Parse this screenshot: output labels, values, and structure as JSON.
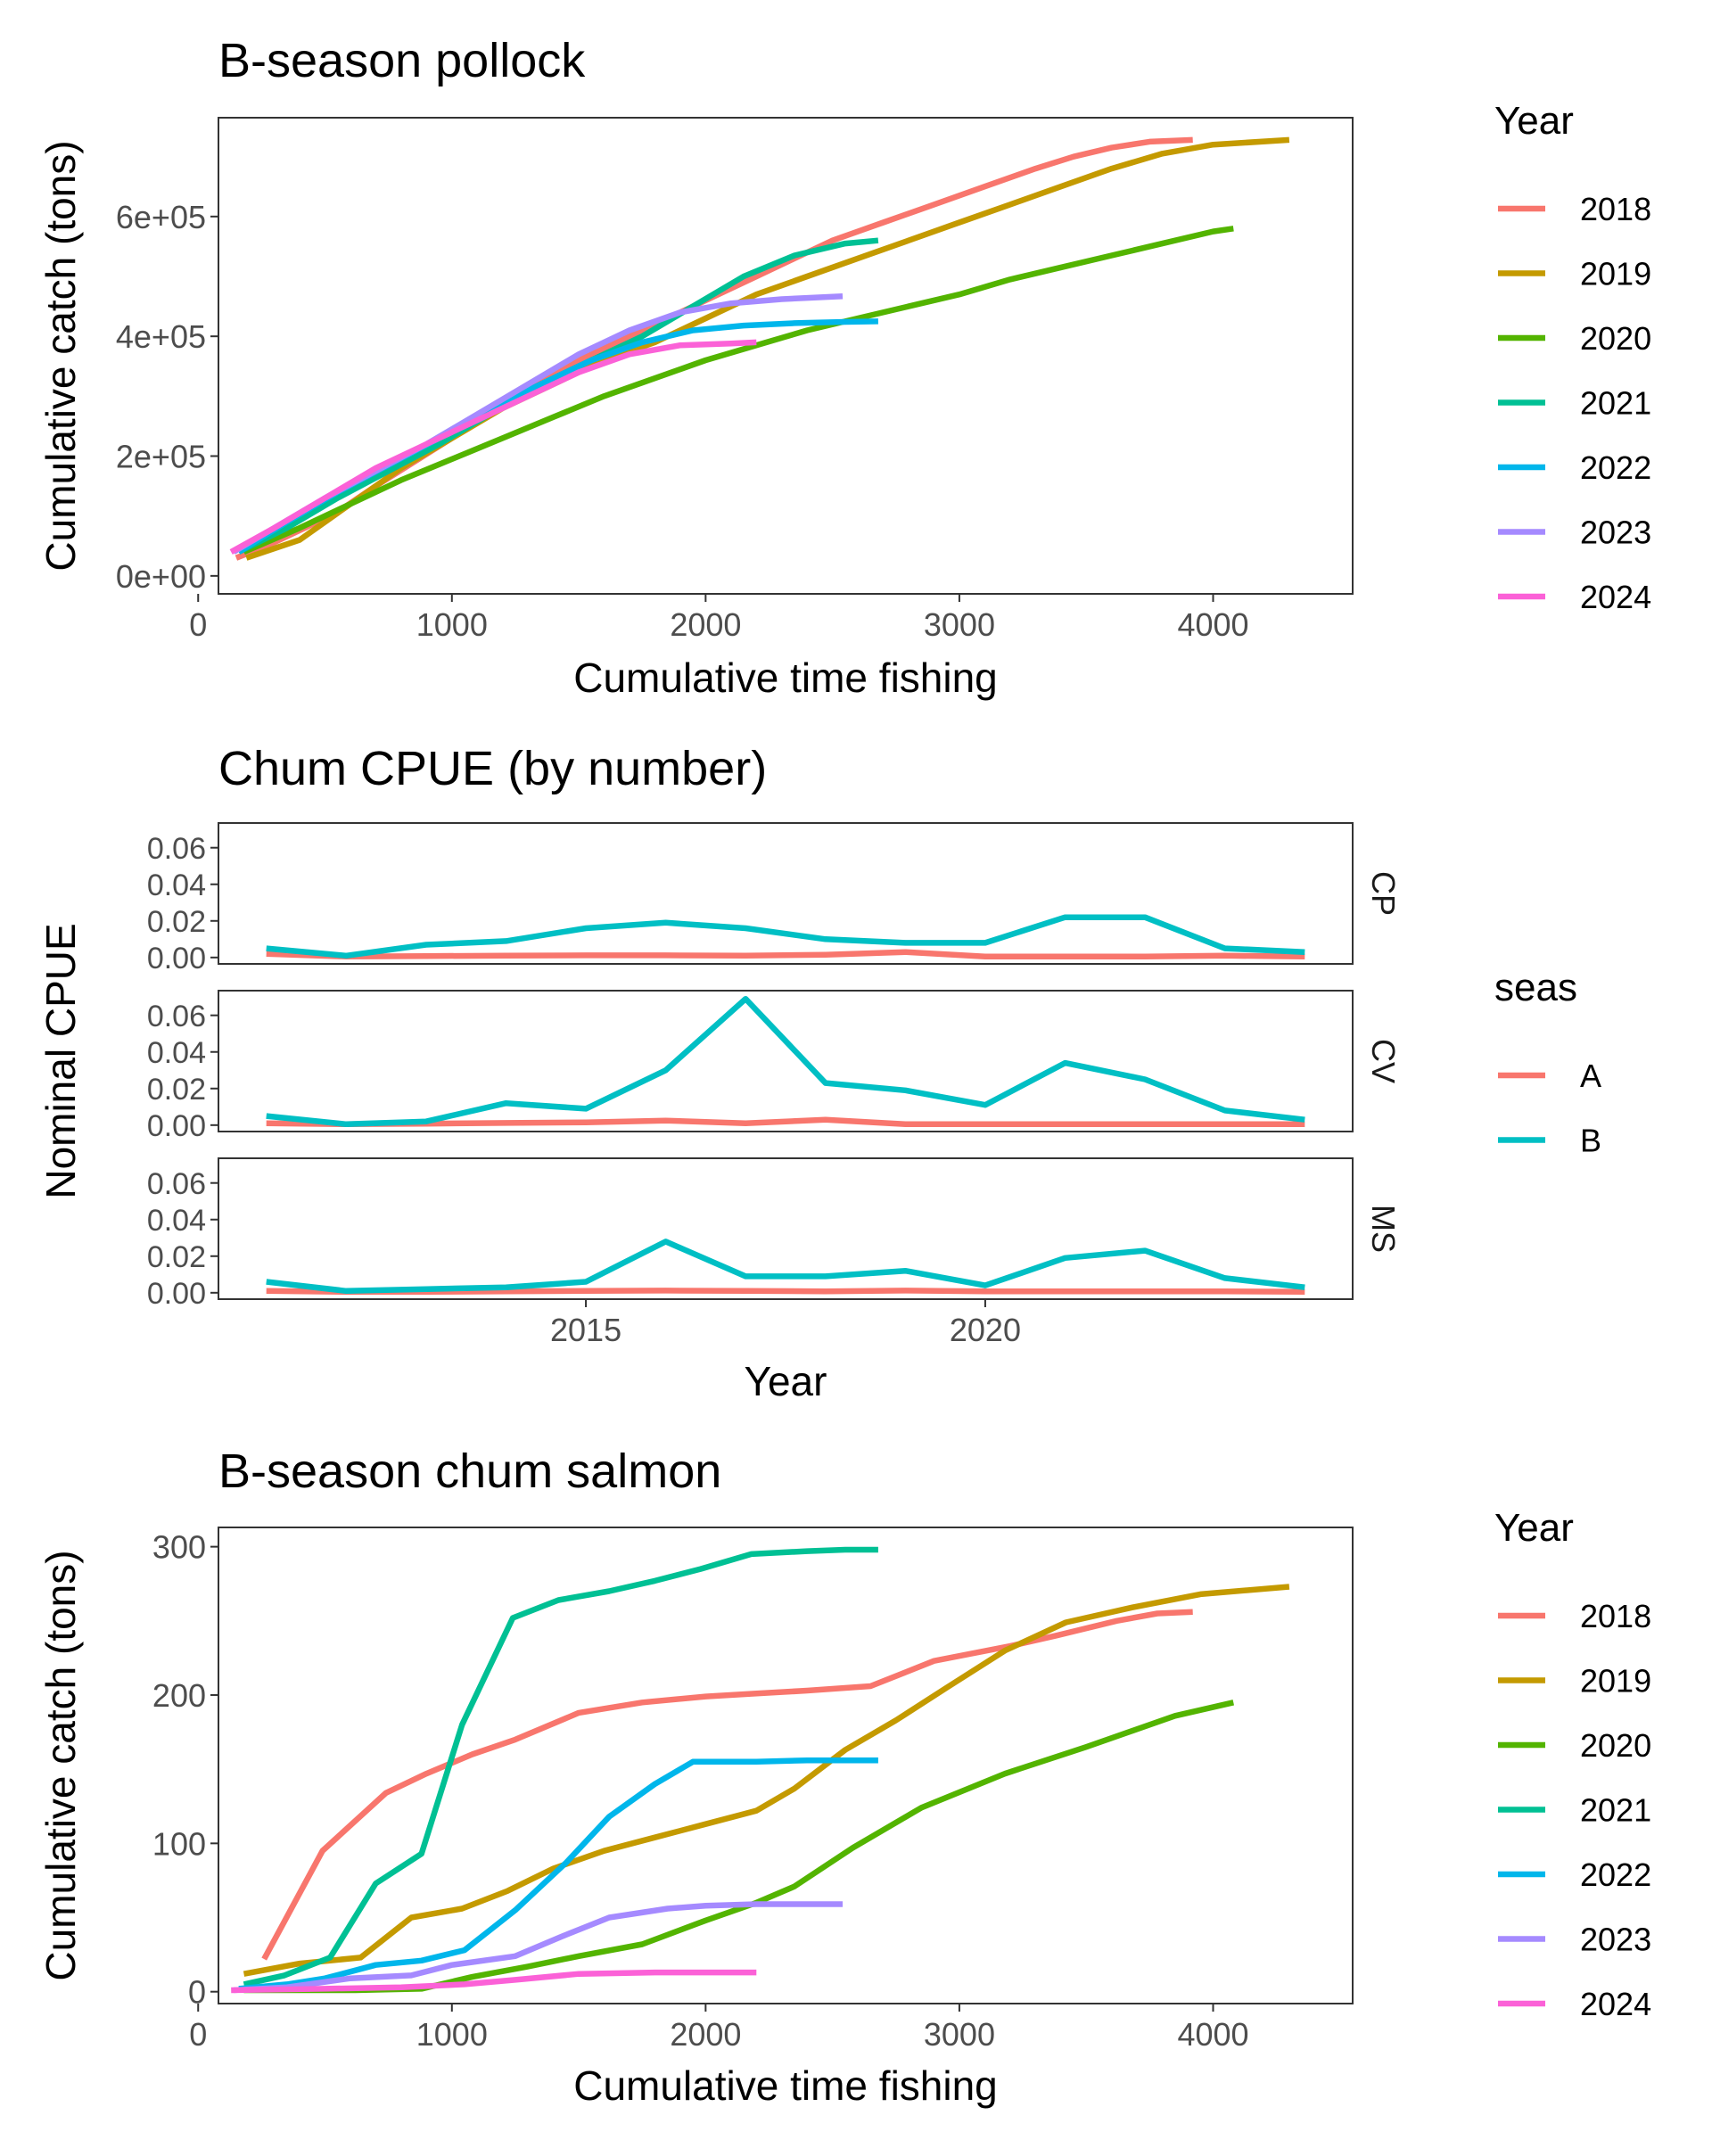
{
  "chart_data": [
    {
      "type": "line",
      "title": "B-season pollock",
      "xlabel": "Cumulative time fishing",
      "ylabel": "Cumulative catch (tons)",
      "xlim": [
        80,
        4550
      ],
      "ylim": [
        -30000,
        765000
      ],
      "x_ticks": [
        0,
        1000,
        2000,
        3000,
        4000
      ],
      "y_ticks": [
        0,
        200000,
        400000,
        600000
      ],
      "y_tick_labels": [
        "0e+00",
        "2e+05",
        "4e+05",
        "6e+05"
      ],
      "legend": {
        "title": "Year",
        "placement": "right"
      },
      "series": [
        {
          "name": "2018",
          "color": "#F8766D",
          "x": [
            150,
            270,
            420,
            560,
            700,
            850,
            1000,
            1150,
            1300,
            1450,
            1600,
            1750,
            1900,
            2050,
            2200,
            2350,
            2500,
            2700,
            2900,
            3100,
            3300,
            3450,
            3600,
            3750,
            3920
          ],
          "y": [
            30000,
            50000,
            80000,
            110000,
            150000,
            190000,
            230000,
            270000,
            310000,
            350000,
            380000,
            410000,
            440000,
            470000,
            500000,
            530000,
            560000,
            590000,
            620000,
            650000,
            680000,
            700000,
            715000,
            725000,
            728000
          ]
        },
        {
          "name": "2019",
          "color": "#C49A00",
          "x": [
            190,
            400,
            600,
            800,
            1000,
            1200,
            1400,
            1600,
            1800,
            2000,
            2200,
            2400,
            2600,
            2800,
            3000,
            3200,
            3400,
            3600,
            3800,
            4000,
            4300
          ],
          "y": [
            30000,
            60000,
            120000,
            180000,
            230000,
            280000,
            320000,
            360000,
            390000,
            430000,
            470000,
            500000,
            530000,
            560000,
            590000,
            620000,
            650000,
            680000,
            705000,
            720000,
            728000
          ]
        },
        {
          "name": "2020",
          "color": "#53B400",
          "x": [
            180,
            400,
            600,
            800,
            1000,
            1200,
            1400,
            1600,
            1800,
            2000,
            2200,
            2400,
            2600,
            2800,
            3000,
            3200,
            3400,
            3600,
            3800,
            4000,
            4080
          ],
          "y": [
            40000,
            80000,
            120000,
            160000,
            195000,
            230000,
            265000,
            300000,
            330000,
            360000,
            385000,
            410000,
            430000,
            450000,
            470000,
            495000,
            515000,
            535000,
            555000,
            575000,
            580000
          ]
        },
        {
          "name": "2021",
          "color": "#00C094",
          "x": [
            160,
            350,
            550,
            750,
            950,
            1150,
            1350,
            1550,
            1750,
            1950,
            2150,
            2350,
            2550,
            2680
          ],
          "y": [
            40000,
            80000,
            130000,
            175000,
            220000,
            270000,
            320000,
            360000,
            400000,
            450000,
            500000,
            535000,
            555000,
            560000
          ]
        },
        {
          "name": "2022",
          "color": "#00B6EB",
          "x": [
            160,
            350,
            550,
            750,
            950,
            1150,
            1350,
            1550,
            1750,
            1950,
            2150,
            2350,
            2550,
            2680
          ],
          "y": [
            40000,
            90000,
            140000,
            185000,
            230000,
            280000,
            320000,
            360000,
            390000,
            410000,
            418000,
            422000,
            424000,
            425000
          ]
        },
        {
          "name": "2023",
          "color": "#A58AFF",
          "x": [
            140,
            300,
            500,
            700,
            900,
            1100,
            1300,
            1500,
            1700,
            1900,
            2100,
            2300,
            2540
          ],
          "y": [
            40000,
            80000,
            130000,
            175000,
            220000,
            270000,
            320000,
            370000,
            410000,
            440000,
            455000,
            462000,
            467000
          ]
        },
        {
          "name": "2024",
          "color": "#FB61D7",
          "x": [
            130,
            300,
            500,
            700,
            900,
            1100,
            1300,
            1500,
            1700,
            1900,
            2100,
            2200
          ],
          "y": [
            40000,
            80000,
            130000,
            180000,
            220000,
            260000,
            300000,
            340000,
            370000,
            385000,
            388000,
            390000
          ]
        }
      ]
    },
    {
      "type": "line",
      "title": "Chum CPUE (by number)",
      "xlabel": "Year",
      "ylabel": "Nominal CPUE",
      "xlim": [
        2010.4,
        2024.6
      ],
      "ylim": [
        -0.0035,
        0.0735
      ],
      "x_ticks": [
        2015,
        2020
      ],
      "y_ticks": [
        0,
        0.02,
        0.04,
        0.06
      ],
      "y_tick_labels": [
        "0.00",
        "0.02",
        "0.04",
        "0.06"
      ],
      "legend": {
        "title": "seas",
        "placement": "right"
      },
      "facets": [
        {
          "label": "CP",
          "series": [
            {
              "name": "A",
              "color": "#F8766D",
              "x": [
                2011,
                2012,
                2013,
                2014,
                2015,
                2016,
                2017,
                2018,
                2019,
                2020,
                2021,
                2022,
                2023,
                2024
              ],
              "y": [
                0.002,
                0.0005,
                0.0008,
                0.001,
                0.0012,
                0.0012,
                0.001,
                0.0015,
                0.003,
                0.0005,
                0.0005,
                0.0005,
                0.001,
                0.0005
              ]
            },
            {
              "name": "B",
              "color": "#00BFC4",
              "x": [
                2011,
                2012,
                2013,
                2014,
                2015,
                2016,
                2017,
                2018,
                2019,
                2020,
                2021,
                2022,
                2023,
                2024
              ],
              "y": [
                0.005,
                0.001,
                0.007,
                0.009,
                0.016,
                0.019,
                0.016,
                0.01,
                0.008,
                0.008,
                0.022,
                0.022,
                0.005,
                0.003
              ]
            }
          ]
        },
        {
          "label": "CV",
          "series": [
            {
              "name": "A",
              "color": "#F8766D",
              "x": [
                2011,
                2012,
                2013,
                2014,
                2015,
                2016,
                2017,
                2018,
                2019,
                2020,
                2021,
                2022,
                2023,
                2024
              ],
              "y": [
                0.001,
                0.0005,
                0.0008,
                0.0012,
                0.0015,
                0.0025,
                0.001,
                0.003,
                0.0005,
                0.0005,
                0.0005,
                0.0005,
                0.0005,
                0.0005
              ]
            },
            {
              "name": "B",
              "color": "#00BFC4",
              "x": [
                2011,
                2012,
                2013,
                2014,
                2015,
                2016,
                2017,
                2018,
                2019,
                2020,
                2021,
                2022,
                2023,
                2024
              ],
              "y": [
                0.005,
                0.0005,
                0.002,
                0.012,
                0.009,
                0.03,
                0.069,
                0.023,
                0.019,
                0.011,
                0.034,
                0.025,
                0.008,
                0.003
              ]
            }
          ]
        },
        {
          "label": "MS",
          "series": [
            {
              "name": "A",
              "color": "#F8766D",
              "x": [
                2011,
                2012,
                2013,
                2014,
                2015,
                2016,
                2017,
                2018,
                2019,
                2020,
                2021,
                2022,
                2023,
                2024
              ],
              "y": [
                0.001,
                0.0005,
                0.0005,
                0.0008,
                0.001,
                0.0012,
                0.001,
                0.0008,
                0.0012,
                0.0008,
                0.0008,
                0.0008,
                0.0008,
                0.0005
              ]
            },
            {
              "name": "B",
              "color": "#00BFC4",
              "x": [
                2011,
                2012,
                2013,
                2014,
                2015,
                2016,
                2017,
                2018,
                2019,
                2020,
                2021,
                2022,
                2023,
                2024
              ],
              "y": [
                0.006,
                0.001,
                0.002,
                0.003,
                0.006,
                0.028,
                0.009,
                0.009,
                0.012,
                0.004,
                0.019,
                0.023,
                0.008,
                0.003
              ]
            }
          ]
        }
      ]
    },
    {
      "type": "line",
      "title": "B-season chum salmon",
      "xlabel": "Cumulative time fishing",
      "ylabel": "Cumulative catch (tons)",
      "xlim": [
        80,
        4550
      ],
      "ylim": [
        -8,
        313
      ],
      "x_ticks": [
        0,
        1000,
        2000,
        3000,
        4000
      ],
      "y_ticks": [
        0,
        100,
        200,
        300
      ],
      "y_tick_labels": [
        "0",
        "100",
        "200",
        "300"
      ],
      "legend": {
        "title": "Year",
        "placement": "right"
      },
      "series": [
        {
          "name": "2018",
          "color": "#F8766D",
          "x": [
            260,
            490,
            740,
            900,
            1080,
            1250,
            1500,
            1750,
            2000,
            2200,
            2400,
            2650,
            2900,
            3200,
            3380,
            3620,
            3780,
            3920
          ],
          "y": [
            22,
            95,
            134,
            147,
            160,
            170,
            188,
            195,
            199,
            201,
            203,
            206,
            223,
            233,
            240,
            250,
            255,
            256
          ]
        },
        {
          "name": "2019",
          "color": "#C49A00",
          "x": [
            180,
            400,
            640,
            840,
            1040,
            1220,
            1400,
            1600,
            1800,
            2000,
            2200,
            2350,
            2550,
            2750,
            2950,
            3180,
            3420,
            3680,
            3950,
            4300
          ],
          "y": [
            12,
            19,
            23,
            50,
            56,
            68,
            83,
            95,
            104,
            113,
            122,
            137,
            163,
            183,
            205,
            230,
            249,
            259,
            268,
            273
          ]
        },
        {
          "name": "2020",
          "color": "#53B400",
          "x": [
            180,
            400,
            620,
            880,
            1080,
            1300,
            1500,
            1750,
            2000,
            2200,
            2350,
            2580,
            2850,
            3180,
            3500,
            3850,
            4080
          ],
          "y": [
            1,
            1,
            1,
            2,
            10,
            17,
            24,
            32,
            48,
            60,
            71,
            97,
            124,
            147,
            165,
            186,
            195
          ]
        },
        {
          "name": "2021",
          "color": "#00C094",
          "x": [
            180,
            340,
            520,
            700,
            880,
            1040,
            1240,
            1420,
            1620,
            1800,
            1980,
            2180,
            2400,
            2550,
            2680
          ],
          "y": [
            5,
            11,
            23,
            73,
            93,
            180,
            252,
            264,
            270,
            277,
            285,
            295,
            297,
            298,
            298
          ]
        },
        {
          "name": "2022",
          "color": "#00B6EB",
          "x": [
            160,
            350,
            500,
            700,
            880,
            1050,
            1250,
            1450,
            1620,
            1800,
            1950,
            2200,
            2400,
            2680
          ],
          "y": [
            2,
            5,
            9,
            18,
            21,
            28,
            55,
            87,
            118,
            140,
            155,
            155,
            156,
            156
          ]
        },
        {
          "name": "2023",
          "color": "#A58AFF",
          "x": [
            140,
            350,
            600,
            840,
            1000,
            1250,
            1430,
            1620,
            1850,
            2000,
            2200,
            2540
          ],
          "y": [
            1,
            3,
            9,
            11,
            18,
            24,
            37,
            50,
            56,
            58,
            59,
            59
          ]
        },
        {
          "name": "2024",
          "color": "#FB61D7",
          "x": [
            130,
            500,
            800,
            1050,
            1250,
            1500,
            1800,
            2200
          ],
          "y": [
            1,
            2,
            3,
            5,
            8,
            12,
            13,
            13
          ]
        }
      ]
    }
  ]
}
